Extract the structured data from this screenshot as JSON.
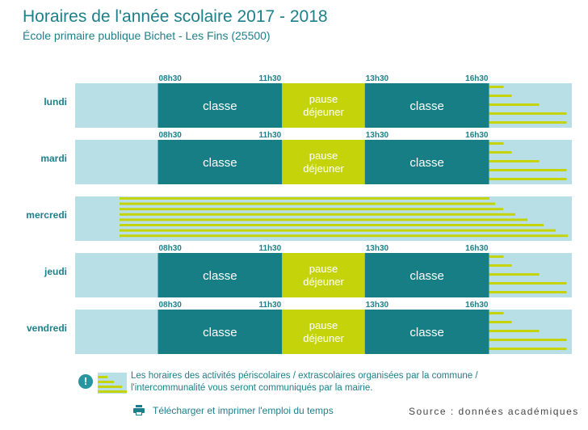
{
  "header": {
    "title": "Horaires de l'année scolaire 2017 - 2018",
    "subtitle": "École primaire publique Bichet - Les Fins (25500)"
  },
  "colors": {
    "teal": "#177e86",
    "lime": "#c5d40a",
    "light_blue": "#b8dee6",
    "text": "#1d7f8a"
  },
  "chart_data": {
    "type": "timeline",
    "title": "Horaires de l'année scolaire 2017 - 2018",
    "time_range": [
      "06h30",
      "18h30"
    ],
    "days": [
      {
        "name": "lundi",
        "segments": [
          {
            "label": "classe",
            "start": "08h30",
            "end": "11h30",
            "kind": "class"
          },
          {
            "label": "pause déjeuner",
            "start": "11h30",
            "end": "13h30",
            "kind": "lunch"
          },
          {
            "label": "classe",
            "start": "13h30",
            "end": "16h30",
            "kind": "class"
          }
        ],
        "tick_labels": [
          "08h30",
          "11h30",
          "13h30",
          "16h30"
        ]
      },
      {
        "name": "mardi",
        "segments": [
          {
            "label": "classe",
            "start": "08h30",
            "end": "11h30",
            "kind": "class"
          },
          {
            "label": "pause déjeuner",
            "start": "11h30",
            "end": "13h30",
            "kind": "lunch"
          },
          {
            "label": "classe",
            "start": "13h30",
            "end": "16h30",
            "kind": "class"
          }
        ],
        "tick_labels": [
          "08h30",
          "11h30",
          "13h30",
          "16h30"
        ]
      },
      {
        "name": "mercredi",
        "segments": [],
        "tick_labels": []
      },
      {
        "name": "jeudi",
        "segments": [
          {
            "label": "classe",
            "start": "08h30",
            "end": "11h30",
            "kind": "class"
          },
          {
            "label": "pause déjeuner",
            "start": "11h30",
            "end": "13h30",
            "kind": "lunch"
          },
          {
            "label": "classe",
            "start": "13h30",
            "end": "16h30",
            "kind": "class"
          }
        ],
        "tick_labels": [
          "08h30",
          "11h30",
          "13h30",
          "16h30"
        ]
      },
      {
        "name": "vendredi",
        "segments": [
          {
            "label": "classe",
            "start": "08h30",
            "end": "11h30",
            "kind": "class"
          },
          {
            "label": "pause déjeuner",
            "start": "11h30",
            "end": "13h30",
            "kind": "lunch"
          },
          {
            "label": "classe",
            "start": "13h30",
            "end": "16h30",
            "kind": "class"
          }
        ],
        "tick_labels": [
          "08h30",
          "11h30",
          "13h30",
          "16h30"
        ]
      }
    ],
    "lunch_label_lines": [
      "pause",
      "déjeuner"
    ]
  },
  "note": {
    "text": "Les horaires des activités périscolaires / extrascolaires organisées par la commune / l'intercommunalité vous seront communiqués par la mairie."
  },
  "footer": {
    "print_label": "Télécharger et imprimer l'emploi du temps",
    "source": "Source : données académiques"
  }
}
